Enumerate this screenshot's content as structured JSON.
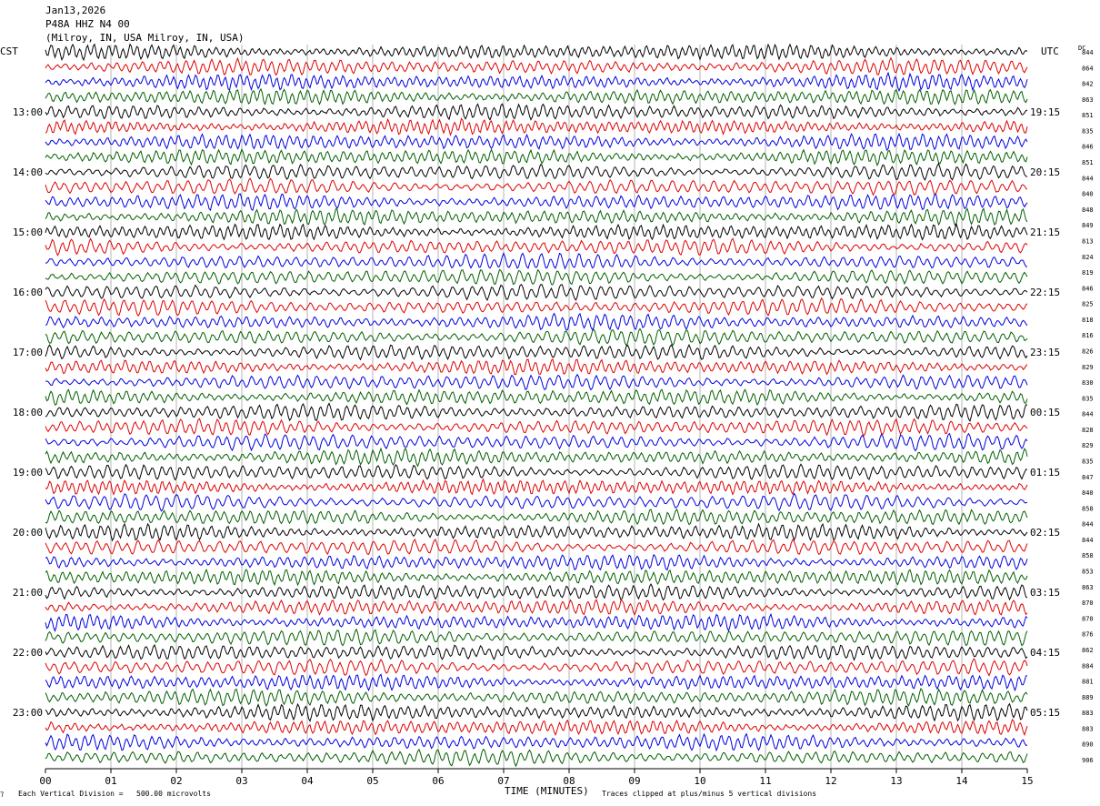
{
  "header": {
    "date": "Jan13,2026",
    "station": "P48A HHZ N4 00",
    "location": "(Milroy, IN, USA Milroy, IN, USA)"
  },
  "left_tz": "CST",
  "right_tz": "UTC",
  "dc_label": "DC",
  "footer": {
    "scale_note": "Each Vertical Division =   500.00 microvolts",
    "clip_note": "Traces clipped at plus/minus 5 vertical divisions",
    "xlabel": "TIME (MINUTES)"
  },
  "colors": {
    "trace_cycle": [
      "#000000",
      "#e00000",
      "#0000e0",
      "#006000"
    ],
    "grid": "#b4b4b4"
  },
  "chart_data": {
    "type": "line",
    "title": "P48A HHZ N4 00",
    "xlabel": "TIME (MINUTES)",
    "x_ticks": [
      "00",
      "01",
      "02",
      "03",
      "04",
      "05",
      "06",
      "07",
      "08",
      "09",
      "10",
      "11",
      "12",
      "13",
      "14",
      "15"
    ],
    "xlim": [
      0,
      15
    ],
    "rows": 48,
    "rows_per_hour": 4,
    "left_hour_labels": [
      "13:00",
      "14:00",
      "15:00",
      "16:00",
      "17:00",
      "18:00",
      "19:00",
      "20:00",
      "21:00",
      "22:00",
      "23:00"
    ],
    "right_hour_labels": [
      "19:15",
      "20:15",
      "21:15",
      "22:15",
      "23:15",
      "00:15",
      "01:15",
      "02:15",
      "03:15",
      "04:15",
      "05:15"
    ],
    "dc_offsets": [
      844,
      864,
      842,
      863,
      851,
      835,
      846,
      851,
      844,
      840,
      848,
      849,
      813,
      824,
      819,
      846,
      825,
      818,
      816,
      826,
      829,
      830,
      835,
      844,
      828,
      829,
      835,
      847,
      840,
      858,
      844,
      844,
      858,
      853,
      863,
      870,
      870,
      876,
      862,
      884,
      881,
      889,
      883,
      883,
      890,
      906
    ],
    "grid": true,
    "legend": "none"
  }
}
